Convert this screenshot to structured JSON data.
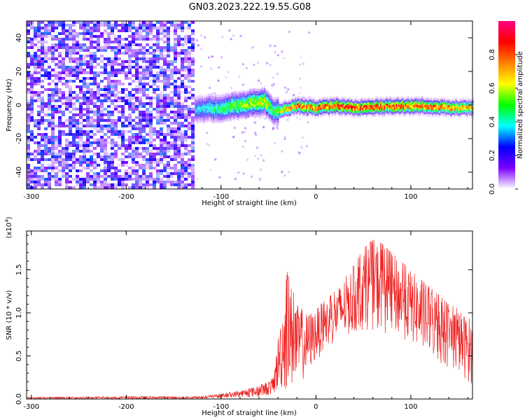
{
  "title": "GN03.2023.222.19.55.G08",
  "chart_data": [
    {
      "type": "heatmap",
      "title": "GN03.2023.222.19.55.G08",
      "xlabel": "Height of straight line (km)",
      "ylabel": "Frequency (Hz)",
      "xlim": [
        -305,
        165
      ],
      "ylim": [
        -50,
        50
      ],
      "x_ticks": [
        "-300",
        "-200",
        "-100",
        "0",
        "100"
      ],
      "y_ticks": [
        "-40",
        "-20",
        "0",
        "20",
        "40"
      ],
      "colorbar": {
        "label": "Normalized spectral amplitude",
        "range": [
          0,
          1
        ],
        "ticks": [
          "0.0",
          "0.2",
          "0.4",
          "0.6",
          "0.8"
        ],
        "colormap": [
          "#ffffff",
          "#7b00ff",
          "#0000ff",
          "#00ffff",
          "#00ff00",
          "#ffff00",
          "#ff8000",
          "#ff0000",
          "#ff0080"
        ]
      },
      "features": {
        "noise_region_x": [
          -305,
          -128
        ],
        "noise_level": [
          0.0,
          0.3
        ],
        "signal_line_frequency": 0,
        "signal_start_x": -128,
        "signal_points": [
          {
            "x": -128,
            "freq": -2,
            "amp": 0.35
          },
          {
            "x": -100,
            "freq": -1,
            "amp": 0.5
          },
          {
            "x": -75,
            "freq": 1,
            "amp": 0.6
          },
          {
            "x": -55,
            "freq": 3,
            "amp": 0.7
          },
          {
            "x": -45,
            "freq": -3,
            "amp": 0.5
          },
          {
            "x": -35,
            "freq": -2,
            "amp": 0.7
          },
          {
            "x": -20,
            "freq": 0,
            "amp": 0.85
          },
          {
            "x": 0,
            "freq": -1,
            "amp": 0.85
          },
          {
            "x": 20,
            "freq": 0,
            "amp": 0.9
          },
          {
            "x": 50,
            "freq": -1,
            "amp": 0.9
          },
          {
            "x": 80,
            "freq": 0,
            "amp": 0.9
          },
          {
            "x": 110,
            "freq": 0,
            "amp": 0.85
          },
          {
            "x": 140,
            "freq": -1,
            "amp": 0.8
          },
          {
            "x": 165,
            "freq": -1,
            "amp": 0.75
          }
        ]
      }
    },
    {
      "type": "line",
      "xlabel": "Height of straight line (km)",
      "ylabel": "SNR (10 * v/v)",
      "y_multiplier": "(x10",
      "y_multiplier_exp": "4",
      "y_multiplier_close": ")",
      "xlim": [
        -305,
        165
      ],
      "ylim": [
        0,
        1.95
      ],
      "x_ticks": [
        "-300",
        "-200",
        "-100",
        "0",
        "100"
      ],
      "y_ticks": [
        "0.0",
        "0.5",
        "1.0",
        "1.5"
      ],
      "series": [
        {
          "color": "#ee2020",
          "envelope": {
            "x": [
              -305,
              -200,
              -120,
              -100,
              -80,
              -60,
              -45,
              -38,
              -30,
              -20,
              -10,
              0,
              10,
              20,
              30,
              40,
              50,
              60,
              70,
              80,
              90,
              100,
              110,
              120,
              130,
              140,
              150,
              160,
              165
            ],
            "min": [
              0.0,
              0.0,
              0.0,
              0.01,
              0.02,
              0.02,
              0.05,
              0.1,
              0.05,
              0.15,
              0.25,
              0.45,
              0.55,
              0.65,
              0.7,
              0.75,
              0.8,
              0.8,
              0.75,
              0.75,
              0.7,
              0.65,
              0.55,
              0.5,
              0.4,
              0.35,
              0.3,
              0.2,
              0.15
            ],
            "max": [
              0.02,
              0.03,
              0.03,
              0.06,
              0.1,
              0.15,
              0.25,
              0.9,
              1.48,
              1.1,
              1.0,
              1.05,
              1.15,
              1.25,
              1.4,
              1.55,
              1.75,
              1.85,
              1.8,
              1.7,
              1.6,
              1.5,
              1.4,
              1.3,
              1.2,
              1.1,
              1.05,
              0.95,
              0.9
            ]
          }
        }
      ]
    }
  ]
}
